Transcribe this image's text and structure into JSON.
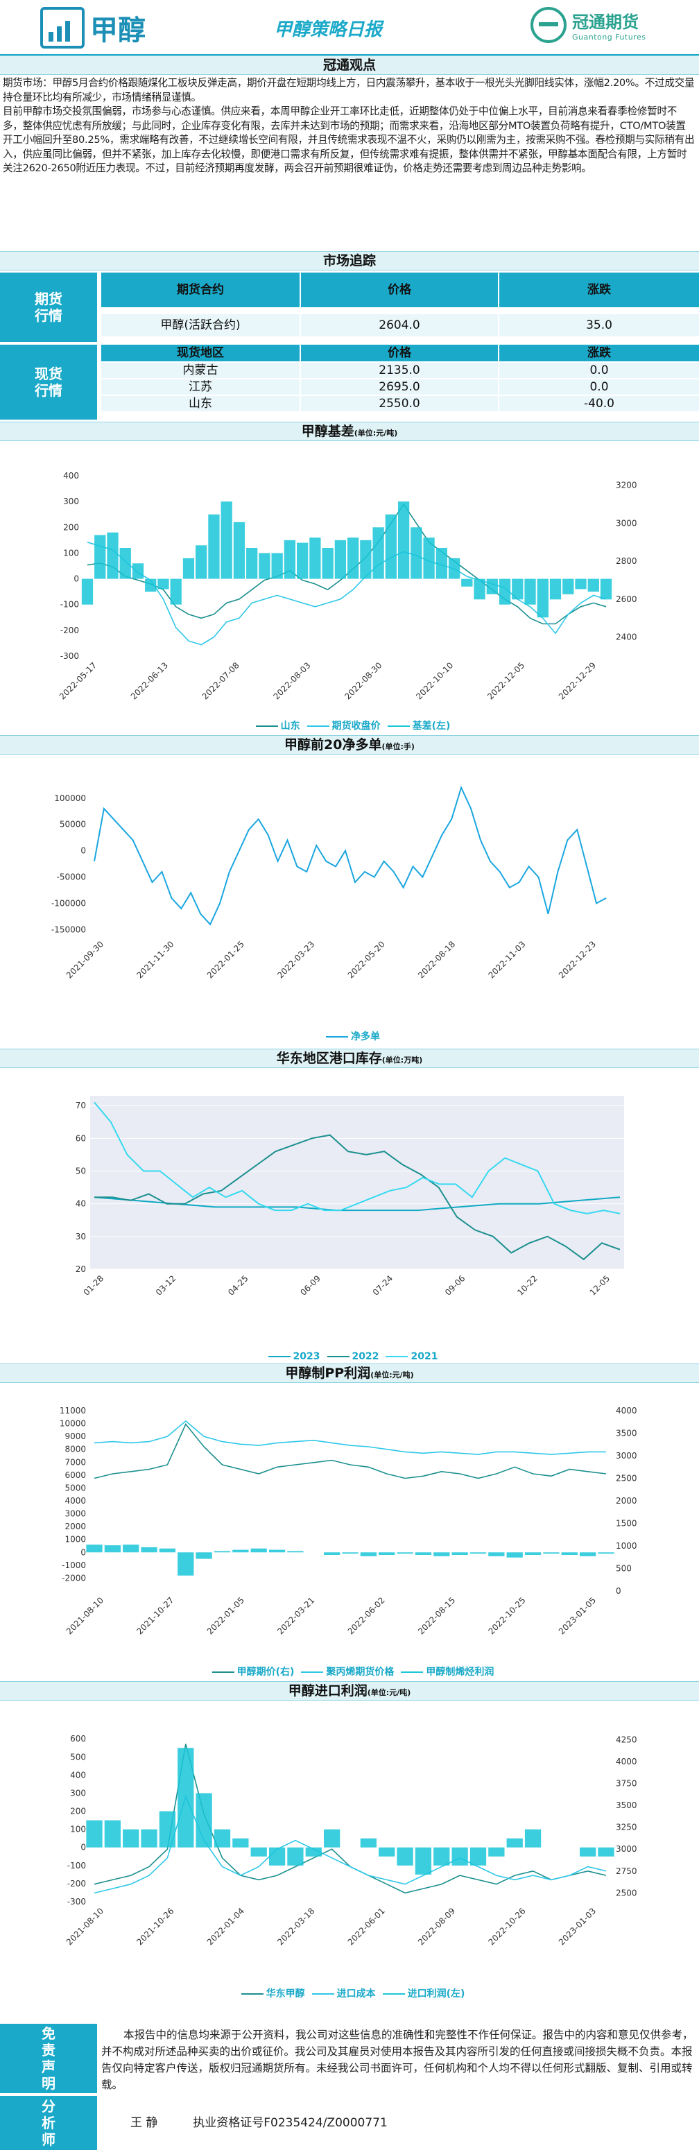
{
  "header": {
    "logo_text": "甲醇",
    "title": "甲醇策略日报",
    "company_cn": "冠通期货",
    "company_en": "Guantong Futures"
  },
  "sections": {
    "view": "冠通观点",
    "market": "市场追踪",
    "basis": "甲醇基差",
    "basis_unit": "(单位:元/吨)",
    "net_short": "甲醇前20净多单",
    "net_short_unit": "(单位:手)",
    "inventory": "华东地区港口库存",
    "inventory_unit": "(单位:万吨)",
    "pp_profit": "甲醇制PP利润",
    "pp_profit_unit": "(单位:元/吨)",
    "import_profit": "甲醇进口利润",
    "import_profit_unit": "(单位:元/吨)"
  },
  "view_text": "期货市场：甲醇5月合约价格跟随煤化工板块反弹走高，期价开盘在短期均线上方，日内震荡攀升，基本收于一根光头光脚阳线实体，涨幅2.20%。不过成交量持仓量环比均有所减少，市场情绪稍显谨慎。\n目前甲醇市场交投氛围偏弱，市场参与心态谨慎。供应来看，本周甲醇企业开工率环比走低，近期整体仍处于中位偏上水平，目前消息来看春季检修暂时不多，整体供应忧虑有所放缓；与此同时，企业库存变化有限，去库并未达到市场的预期；而需求来看，沿海地区部分MTO装置负荷略有提升，CTO/MTO装置开工小幅回升至80.25%，需求端略有改善，不过继续增长空间有限，并且传统需求表现不温不火，采购仍以刚需为主，按需采购不强。春检预期与实际稍有出入，供应虽同比偏弱，但并不紧张，加上库存去化较慢，即便港口需求有所反复，但传统需求难有提振，整体供需并不紧张，甲醇基本面配合有限，上方暂时关注2620-2650附近压力表现。不过，目前经济预期再度发酵，两会召开前预期很难证伪，价格走势还需要考虑到周边品种走势影响。",
  "market": {
    "futures_label": "期货行情",
    "spot_label": "现货行情",
    "headers": [
      "期货合约",
      "价格",
      "涨跌"
    ],
    "futures_rows": [
      {
        "name": "甲醇(活跃合约)",
        "price": "2604.0",
        "change": "35.0"
      }
    ],
    "spot_headers": [
      "现货地区",
      "价格",
      "涨跌"
    ],
    "spot_rows": [
      {
        "name": "内蒙古",
        "price": "2135.0",
        "change": "0.0"
      },
      {
        "name": "江苏",
        "price": "2695.0",
        "change": "0.0"
      },
      {
        "name": "山东",
        "price": "2550.0",
        "change": "-40.0"
      }
    ]
  },
  "chart_data": [
    {
      "id": "basis",
      "type": "line",
      "x_ticks": [
        "2022-05-17",
        "2022-06-13",
        "2022-07-08",
        "2022-08-03",
        "2022-08-30",
        "2022-10-10",
        "2022-12-05",
        "2022-12-29"
      ],
      "yleft_ticks": [
        "400",
        "300",
        "200",
        "100",
        "0",
        "-100",
        "-200",
        "-300"
      ],
      "yright_ticks": [
        "3200",
        "3000",
        "2800",
        "2600",
        "2400"
      ],
      "ylim_left": [
        -300,
        400
      ],
      "ylim_right": [
        2300,
        3250
      ],
      "series": [
        {
          "name": "山东",
          "axis": "right",
          "color": "#1b8f8f",
          "kind": "line",
          "values": [
            2780,
            2790,
            2770,
            2720,
            2700,
            2680,
            2650,
            2560,
            2520,
            2500,
            2520,
            2580,
            2600,
            2650,
            2700,
            2720,
            2750,
            2700,
            2680,
            2650,
            2700,
            2760,
            2820,
            2900,
            3000,
            3100,
            3000,
            2900,
            2850,
            2800,
            2750,
            2700,
            2650,
            2600,
            2560,
            2500,
            2470,
            2470,
            2520,
            2560,
            2580,
            2560
          ]
        },
        {
          "name": "期货收盘价",
          "axis": "right",
          "color": "#2ec7e8",
          "kind": "line",
          "values": [
            2900,
            2880,
            2860,
            2800,
            2740,
            2700,
            2600,
            2450,
            2380,
            2360,
            2400,
            2480,
            2500,
            2580,
            2600,
            2620,
            2600,
            2580,
            2560,
            2580,
            2600,
            2650,
            2720,
            2780,
            2820,
            2850,
            2830,
            2800,
            2780,
            2760,
            2720,
            2700,
            2680,
            2660,
            2600,
            2560,
            2500,
            2420,
            2520,
            2580,
            2620,
            2600
          ]
        },
        {
          "name": "基差(左)",
          "axis": "left",
          "color": "#19c6d8",
          "kind": "bar",
          "values": [
            -100,
            170,
            180,
            120,
            60,
            -50,
            -40,
            -100,
            80,
            130,
            250,
            300,
            220,
            120,
            100,
            100,
            150,
            140,
            160,
            120,
            150,
            160,
            150,
            200,
            250,
            300,
            200,
            160,
            120,
            80,
            -30,
            -80,
            -60,
            -100,
            -80,
            -100,
            -150,
            -80,
            -60,
            -40,
            -50,
            -80
          ]
        }
      ]
    },
    {
      "id": "net_short",
      "type": "line",
      "x_ticks": [
        "2021-09-30",
        "2021-11-30",
        "2022-01-25",
        "2022-03-23",
        "2022-05-20",
        "2022-08-18",
        "2022-11-03",
        "2022-12-23"
      ],
      "y_ticks": [
        "100000",
        "50000",
        "0",
        "-50000",
        "-100000",
        "-150000"
      ],
      "ylim": [
        -160000,
        130000
      ],
      "series": [
        {
          "name": "净多单",
          "color": "#1aa6e0",
          "values": [
            -20000,
            80000,
            60000,
            40000,
            20000,
            -20000,
            -60000,
            -40000,
            -90000,
            -110000,
            -80000,
            -120000,
            -140000,
            -100000,
            -40000,
            0,
            40000,
            60000,
            30000,
            -20000,
            20000,
            -30000,
            -40000,
            10000,
            -20000,
            -30000,
            0,
            -60000,
            -40000,
            -50000,
            -20000,
            -40000,
            -70000,
            -30000,
            -50000,
            -10000,
            30000,
            60000,
            120000,
            80000,
            20000,
            -20000,
            -40000,
            -70000,
            -60000,
            -30000,
            -50000,
            -120000,
            -40000,
            20000,
            40000,
            -30000,
            -100000,
            -90000
          ]
        }
      ]
    },
    {
      "id": "inventory",
      "type": "line",
      "x_ticks": [
        "01-28",
        "03-12",
        "04-25",
        "06-09",
        "07-24",
        "09-06",
        "10-22",
        "12-05"
      ],
      "y_ticks": [
        "70",
        "60",
        "50",
        "40",
        "30",
        "20"
      ],
      "ylim": [
        20,
        73
      ],
      "series": [
        {
          "name": "2023",
          "color": "#11a9c4",
          "values": [
            42,
            41,
            40,
            39,
            39,
            39,
            38,
            38,
            38,
            39,
            40,
            40,
            41,
            42
          ]
        },
        {
          "name": "2022",
          "color": "#1b8f8f",
          "values": [
            42,
            42,
            41,
            43,
            40,
            40,
            43,
            44,
            48,
            52,
            56,
            58,
            60,
            61,
            56,
            55,
            56,
            52,
            49,
            45,
            36,
            32,
            30,
            25,
            28,
            30,
            27,
            23,
            28,
            26
          ]
        },
        {
          "name": "2021",
          "color": "#35d9f0",
          "values": [
            71,
            65,
            55,
            50,
            50,
            46,
            42,
            45,
            42,
            44,
            40,
            38,
            38,
            40,
            38,
            38,
            40,
            42,
            44,
            45,
            48,
            46,
            46,
            42,
            50,
            54,
            52,
            50,
            40,
            38,
            37,
            38,
            37
          ]
        }
      ]
    },
    {
      "id": "pp_profit",
      "type": "line",
      "x_ticks": [
        "2021-08-10",
        "2021-10-27",
        "2022-01-05",
        "2022-03-21",
        "2022-06-02",
        "2022-08-15",
        "2022-10-25",
        "2023-01-05"
      ],
      "yleft_ticks": [
        "11000",
        "10000",
        "9000",
        "8000",
        "7000",
        "6000",
        "5000",
        "4000",
        "3000",
        "2000",
        "1000",
        "0",
        "-1000",
        "-2000"
      ],
      "yright_ticks": [
        "4000",
        "3500",
        "3000",
        "2500",
        "2000",
        "1500",
        "1000",
        "500",
        "0"
      ],
      "ylim_left": [
        -3000,
        11000
      ],
      "ylim_right": [
        0,
        4000
      ],
      "series": [
        {
          "name": "甲醇期价(右)",
          "axis": "right",
          "color": "#1b8f8f",
          "kind": "line",
          "values": [
            2500,
            2600,
            2650,
            2700,
            2800,
            3700,
            3200,
            2800,
            2700,
            2600,
            2750,
            2800,
            2850,
            2900,
            2800,
            2750,
            2600,
            2500,
            2550,
            2650,
            2600,
            2500,
            2600,
            2750,
            2600,
            2550,
            2700,
            2650,
            2600
          ]
        },
        {
          "name": "聚丙烯期货价格",
          "axis": "left",
          "color": "#2ec7e8",
          "kind": "line",
          "values": [
            8500,
            8600,
            8500,
            8600,
            9000,
            10200,
            9000,
            8600,
            8400,
            8300,
            8500,
            8600,
            8700,
            8500,
            8300,
            8200,
            8000,
            7800,
            7700,
            7800,
            7700,
            7600,
            7800,
            7800,
            7700,
            7600,
            7700,
            7800,
            7800
          ]
        },
        {
          "name": "甲醇制烯烃利润",
          "axis": "left",
          "color": "#19c6d8",
          "kind": "bar",
          "values": [
            600,
            550,
            600,
            400,
            300,
            -1800,
            -500,
            100,
            200,
            300,
            200,
            100,
            0,
            -200,
            -100,
            -300,
            -200,
            -100,
            -200,
            -300,
            -200,
            -100,
            -300,
            -400,
            -200,
            -100,
            -200,
            -300,
            -100
          ]
        }
      ]
    },
    {
      "id": "import_profit",
      "type": "line",
      "x_ticks": [
        "2021-08-10",
        "2021-10-26",
        "2022-01-04",
        "2022-03-18",
        "2022-06-01",
        "2022-08-09",
        "2022-10-26",
        "2023-01-03"
      ],
      "yleft_ticks": [
        "600",
        "500",
        "400",
        "300",
        "200",
        "100",
        "0",
        "-100",
        "-200",
        "-300"
      ],
      "yright_ticks": [
        "4250",
        "4000",
        "3750",
        "3500",
        "3250",
        "3000",
        "2750",
        "2500"
      ],
      "ylim_left": [
        -300,
        620
      ],
      "ylim_right": [
        2400,
        4300
      ],
      "series": [
        {
          "name": "华东甲醇",
          "axis": "right",
          "color": "#1b8f8f",
          "kind": "line",
          "values": [
            2600,
            2650,
            2700,
            2800,
            3000,
            4200,
            3400,
            2900,
            2700,
            2650,
            2700,
            2800,
            2900,
            3000,
            2800,
            2700,
            2600,
            2500,
            2550,
            2600,
            2700,
            2650,
            2600,
            2700,
            2750,
            2650,
            2700,
            2750,
            2700
          ]
        },
        {
          "name": "进口成本",
          "axis": "right",
          "color": "#2ec7e8",
          "kind": "line",
          "values": [
            2500,
            2550,
            2600,
            2700,
            2900,
            3600,
            3100,
            2800,
            2700,
            2800,
            3000,
            3100,
            3000,
            2900,
            2800,
            2700,
            2650,
            2600,
            2700,
            2800,
            2900,
            2800,
            2700,
            2650,
            2700,
            2650,
            2700,
            2800,
            2750
          ]
        },
        {
          "name": "进口利润(左)",
          "axis": "left",
          "color": "#19c6d8",
          "kind": "bar",
          "values": [
            150,
            150,
            100,
            100,
            200,
            550,
            300,
            100,
            50,
            -50,
            -100,
            -100,
            -50,
            100,
            0,
            50,
            -50,
            -100,
            -150,
            -100,
            -100,
            -100,
            -50,
            50,
            100,
            0,
            0,
            -50,
            -50
          ]
        }
      ]
    }
  ],
  "disclaimer_label": "免责声明",
  "disclaimer_text": "本报告中的信息均来源于公开资料，我公司对这些信息的准确性和完整性不作任何保证。报告中的内容和意见仅供参考，并不构成对所述品种买卖的出价或征价。我公司及其雇员对使用本报告及其内容所引发的任何直接或间接损失概不负责。本报告仅向特定客户传送，版权归冠通期货所有。未经我公司书面许可，任何机构和个人均不得以任何形式翻版、复制、引用或转载。",
  "analyst_label": "分析师",
  "analyst_name": "王  静",
  "analyst_cert": "执业资格证号F0235424/Z0000771"
}
